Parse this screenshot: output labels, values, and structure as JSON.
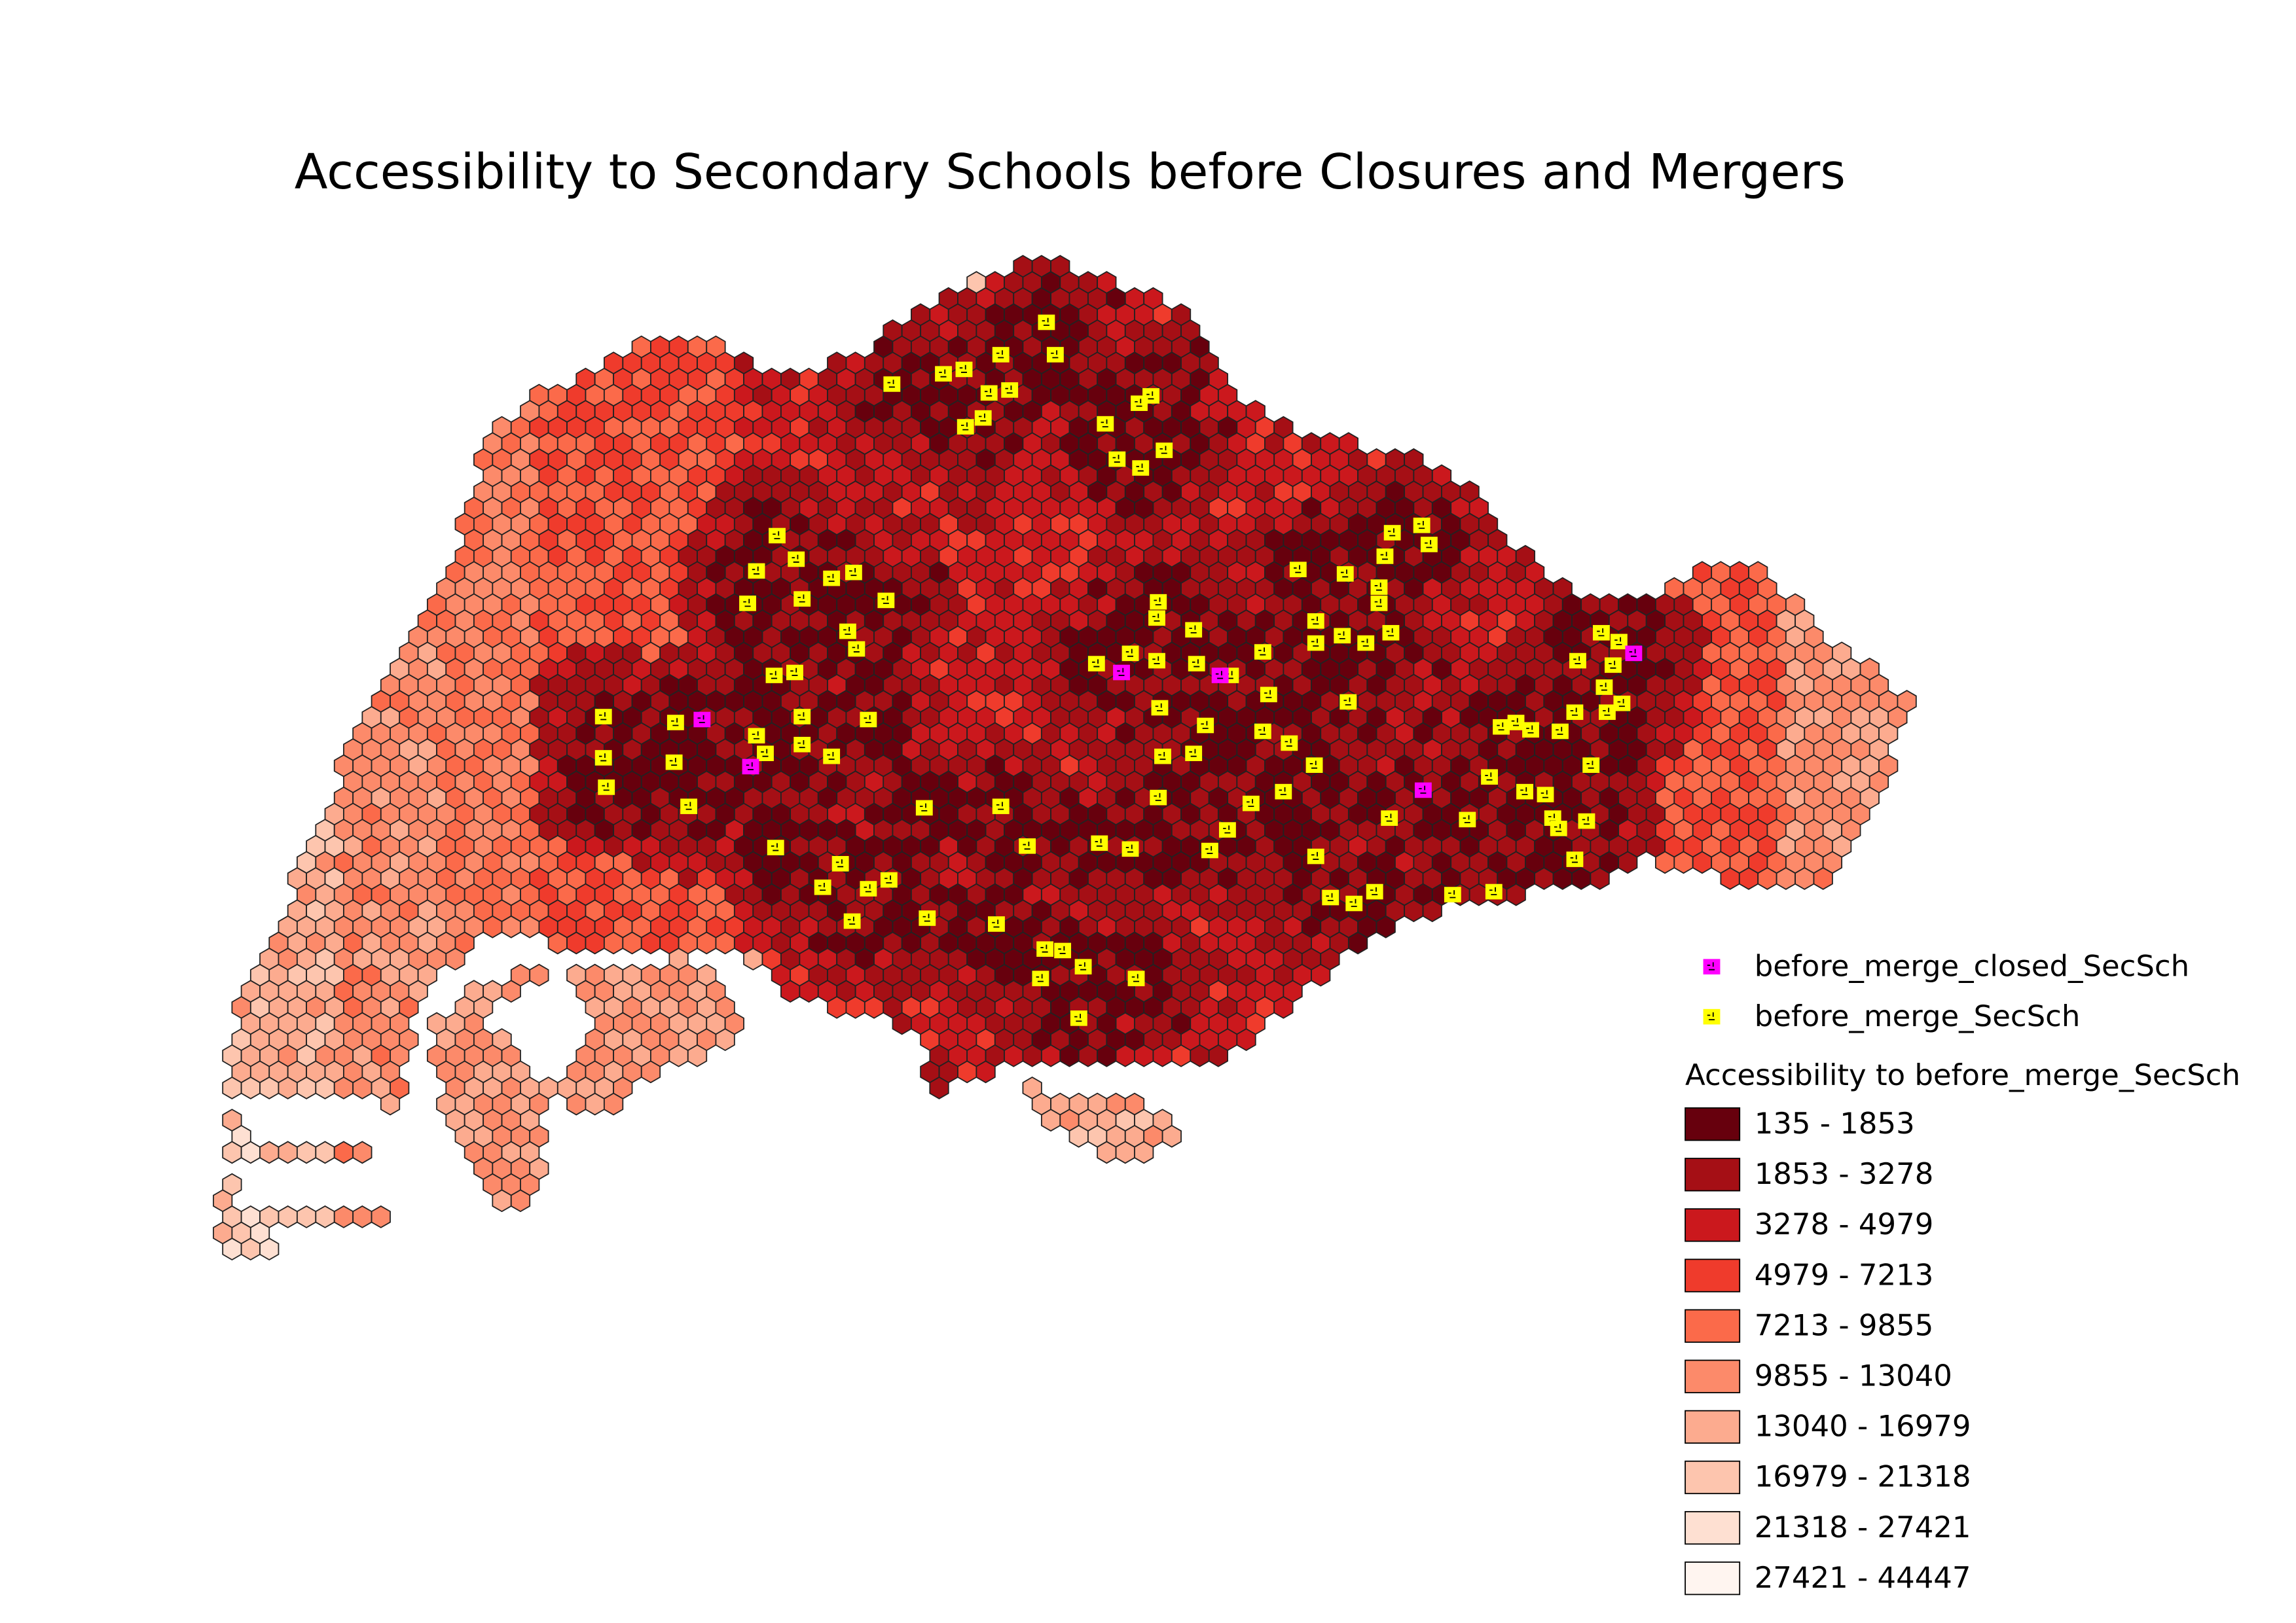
{
  "title": "Accessibility to Secondary Schools before Closures and Mergers",
  "legend": {
    "closed_layer": "before_merge_closed_SecSch",
    "open_layer": "before_merge_SecSch",
    "closed_color": "#ff00ff",
    "open_color": "#ffff00",
    "ramp_title": "Accessibility to before_merge_SecSch",
    "classes": [
      {
        "label": "135 - 1853",
        "color": "#67000d"
      },
      {
        "label": "1853 - 3278",
        "color": "#a50f15"
      },
      {
        "label": "3278 - 4979",
        "color": "#cb181d"
      },
      {
        "label": "4979 - 7213",
        "color": "#ef3b2c"
      },
      {
        "label": "7213 - 9855",
        "color": "#fb6a4a"
      },
      {
        "label": "9855 - 13040",
        "color": "#fc8a6a"
      },
      {
        "label": "13040 - 16979",
        "color": "#fcab8f"
      },
      {
        "label": "16979 - 21318",
        "color": "#fdc5ae"
      },
      {
        "label": "21318 - 27421",
        "color": "#fee0d2"
      },
      {
        "label": "27421 - 44447",
        "color": "#fff5f0"
      }
    ]
  }
}
